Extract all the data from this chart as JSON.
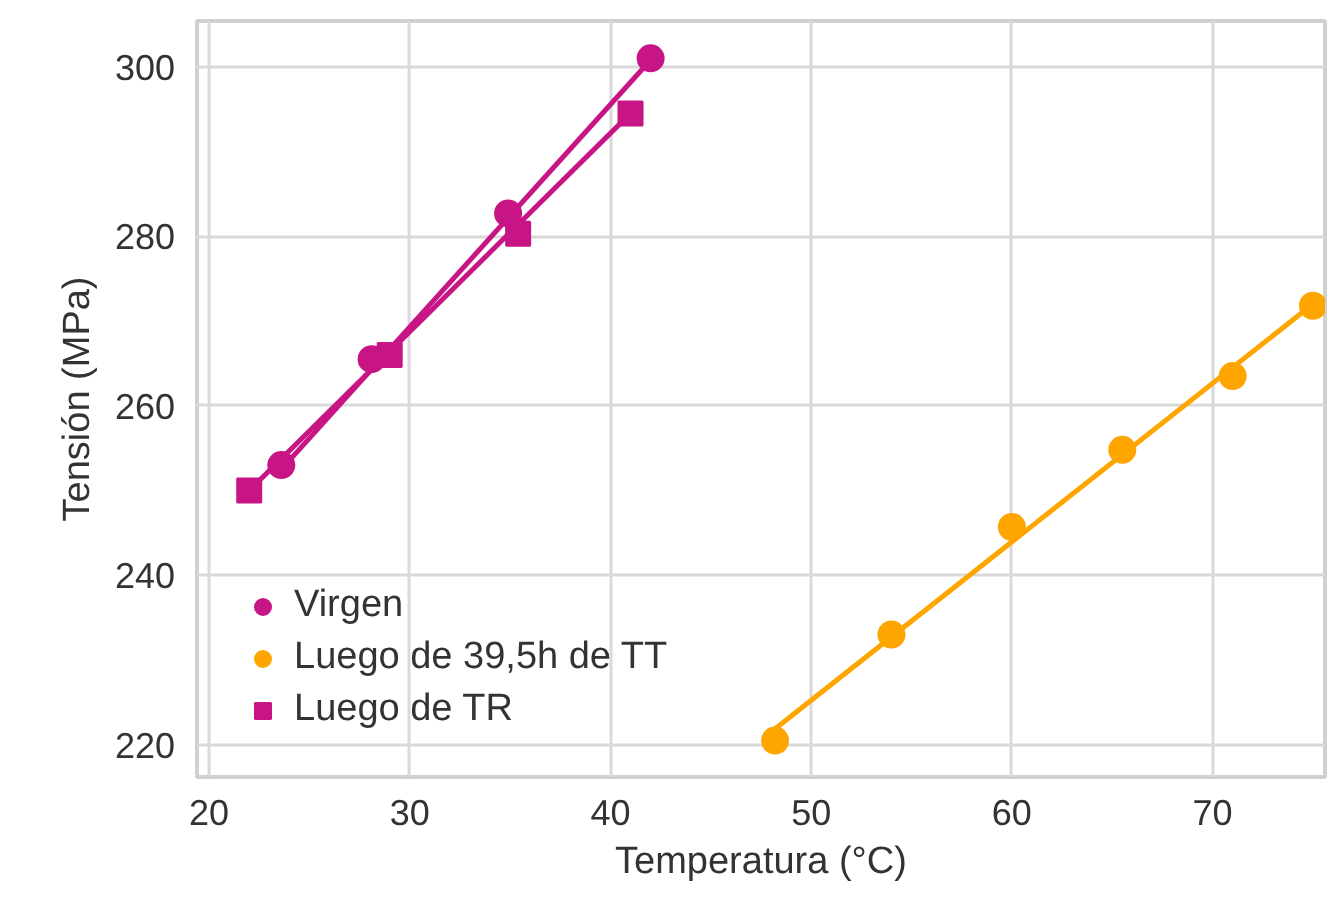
{
  "chart_data": {
    "type": "scatter",
    "xlabel": "Temperatura (°C)",
    "ylabel": "Tensión (MPa)",
    "xlim": [
      19.4,
      75.6
    ],
    "ylim": [
      216.2,
      305.4
    ],
    "xticks": [
      20,
      30,
      40,
      50,
      60,
      70
    ],
    "yticks": [
      220,
      240,
      260,
      280,
      300
    ],
    "grid": true,
    "legend": "bottom left",
    "series": [
      {
        "name": "Virgen",
        "color": "#c71585",
        "marker": "circle",
        "x": [
          23.6,
          28.1,
          34.9,
          42
        ],
        "values": [
          253,
          265.5,
          282.7,
          301
        ]
      },
      {
        "name": "Luego de 39,5h de TT",
        "color": "#ffa500",
        "marker": "circle",
        "x": [
          48.2,
          54,
          60,
          65.5,
          71,
          75
        ],
        "values": [
          220.5,
          233,
          245.7,
          254.8,
          263.5,
          271.8
        ]
      },
      {
        "name": "Luego de TR",
        "color": "#c71585",
        "marker": "square",
        "x": [
          22,
          29,
          35.4,
          41
        ],
        "values": [
          250,
          266,
          280.3,
          294.5
        ]
      },
      {
        "type": "line",
        "color": "#c71585",
        "x": [
          23.6,
          42
        ],
        "values": [
          252.5,
          300.8
        ]
      },
      {
        "type": "line",
        "color": "#ffa500",
        "x": [
          48,
          75
        ],
        "values": [
          221.5,
          272
        ]
      },
      {
        "type": "line",
        "color": "#c71585",
        "x": [
          22,
          41
        ],
        "values": [
          250,
          294.5
        ]
      }
    ]
  }
}
